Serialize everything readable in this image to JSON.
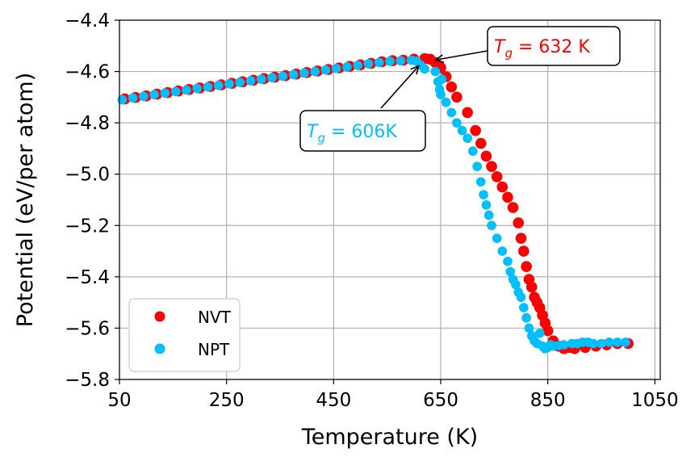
{
  "chart_data": {
    "type": "scatter",
    "title": "",
    "xlabel": "Temperature (K)",
    "ylabel": "Potential (eV/per atom)",
    "xlim": [
      50,
      1060
    ],
    "ylim": [
      -5.8,
      -4.4
    ],
    "xticks": [
      50,
      250,
      450,
      650,
      850,
      1050
    ],
    "xtick_labels": [
      "50",
      "250",
      "450",
      "650",
      "850",
      "1050"
    ],
    "yticks": [
      -5.8,
      -5.6,
      -5.4,
      -5.2,
      -5.0,
      -4.8,
      -4.6,
      -4.4
    ],
    "ytick_labels": [
      "−5.8",
      "−5.6",
      "−5.4",
      "−5.2",
      "−5.0",
      "−4.8",
      "−4.6",
      "−4.4"
    ],
    "grid": true,
    "legend_position": "lower-left",
    "series": [
      {
        "name": "NVT",
        "color": "#ff0000",
        "x": [
          60,
          80,
          100,
          120,
          140,
          160,
          180,
          200,
          220,
          240,
          260,
          280,
          300,
          320,
          340,
          360,
          380,
          400,
          420,
          440,
          460,
          480,
          500,
          520,
          540,
          560,
          580,
          600,
          620,
          630,
          640,
          650,
          660,
          670,
          680,
          700,
          715,
          725,
          735,
          745,
          755,
          765,
          775,
          785,
          795,
          800,
          805,
          810,
          815,
          820,
          825,
          830,
          835,
          840,
          845,
          850,
          860,
          870,
          880,
          890,
          900,
          920,
          940,
          960,
          980,
          1000
        ],
        "y": [
          -4.707,
          -4.701,
          -4.695,
          -4.688,
          -4.682,
          -4.676,
          -4.67,
          -4.664,
          -4.658,
          -4.652,
          -4.646,
          -4.64,
          -4.634,
          -4.628,
          -4.622,
          -4.616,
          -4.61,
          -4.604,
          -4.598,
          -4.592,
          -4.586,
          -4.58,
          -4.574,
          -4.568,
          -4.562,
          -4.558,
          -4.556,
          -4.552,
          -4.55,
          -4.552,
          -4.565,
          -4.585,
          -4.62,
          -4.66,
          -4.7,
          -4.76,
          -4.83,
          -4.88,
          -4.93,
          -4.97,
          -5.01,
          -5.05,
          -5.09,
          -5.13,
          -5.19,
          -5.25,
          -5.3,
          -5.36,
          -5.41,
          -5.44,
          -5.48,
          -5.5,
          -5.52,
          -5.55,
          -5.58,
          -5.61,
          -5.65,
          -5.67,
          -5.68,
          -5.675,
          -5.68,
          -5.675,
          -5.67,
          -5.665,
          -5.66,
          -5.66
        ]
      },
      {
        "name": "NPT",
        "color": "#00bfff",
        "x": [
          55,
          75,
          95,
          115,
          135,
          155,
          175,
          195,
          215,
          235,
          255,
          275,
          295,
          315,
          335,
          355,
          375,
          395,
          415,
          435,
          455,
          475,
          495,
          515,
          535,
          555,
          575,
          595,
          605,
          612,
          620,
          640,
          645,
          648,
          650,
          652,
          660,
          670,
          680,
          690,
          700,
          710,
          718,
          725,
          730,
          735,
          740,
          745,
          755,
          765,
          775,
          780,
          785,
          790,
          795,
          800,
          805,
          810,
          815,
          820,
          825,
          830,
          835,
          840,
          845,
          850,
          855,
          860,
          870,
          880,
          895,
          905,
          915,
          925,
          935,
          950,
          965,
          980,
          995
        ],
        "y": [
          -4.71,
          -4.703,
          -4.697,
          -4.69,
          -4.684,
          -4.678,
          -4.672,
          -4.666,
          -4.66,
          -4.654,
          -4.648,
          -4.642,
          -4.636,
          -4.63,
          -4.624,
          -4.618,
          -4.612,
          -4.606,
          -4.6,
          -4.594,
          -4.588,
          -4.582,
          -4.576,
          -4.57,
          -4.565,
          -4.56,
          -4.558,
          -4.556,
          -4.56,
          -4.575,
          -4.59,
          -4.6,
          -4.64,
          -4.67,
          -4.69,
          -4.63,
          -4.72,
          -4.76,
          -4.8,
          -4.83,
          -4.86,
          -4.91,
          -4.97,
          -5.03,
          -5.08,
          -5.12,
          -5.16,
          -5.2,
          -5.25,
          -5.3,
          -5.34,
          -5.38,
          -5.41,
          -5.43,
          -5.46,
          -5.48,
          -5.52,
          -5.56,
          -5.6,
          -5.63,
          -5.65,
          -5.66,
          -5.62,
          -5.67,
          -5.68,
          -5.675,
          -5.665,
          -5.67,
          -5.668,
          -5.665,
          -5.66,
          -5.66,
          -5.655,
          -5.655,
          -5.66,
          -5.66,
          -5.655,
          -5.655,
          -5.655
        ]
      }
    ],
    "annotations": [
      {
        "id": "nvt",
        "label": "T_g = 632 K",
        "text_math_main": "T",
        "text_math_sub": "g",
        "text_rest": " = 632 K",
        "color": "#ff0000",
        "arrow_to": [
          640,
          -4.555
        ]
      },
      {
        "id": "npt",
        "label": "T_g = 606K",
        "text_math_main": "T",
        "text_math_sub": "g",
        "text_rest": " = 606K",
        "color": "#00bfff",
        "arrow_to": [
          609,
          -4.578
        ]
      }
    ]
  }
}
